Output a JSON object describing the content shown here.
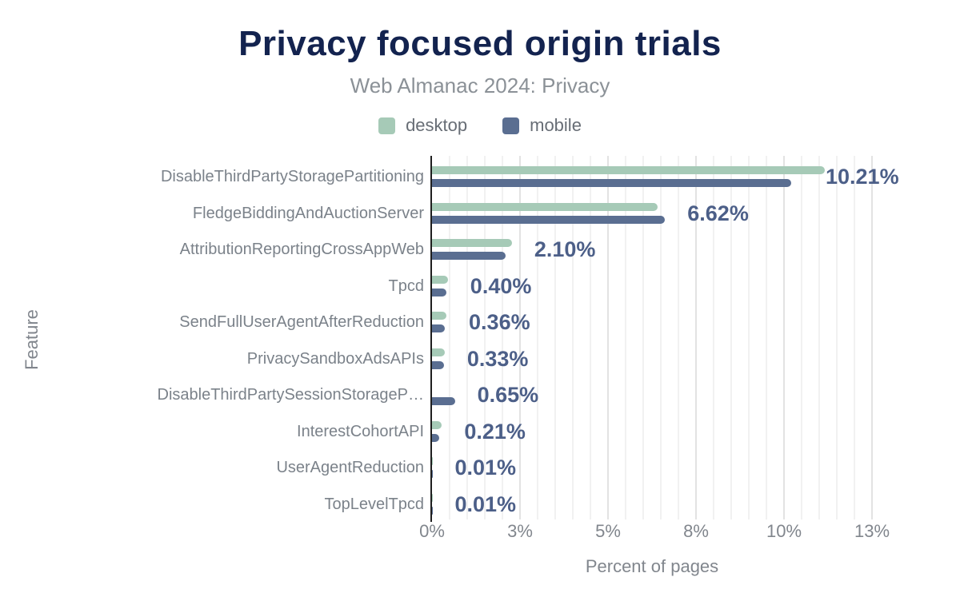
{
  "header": {
    "title": "Privacy focused origin trials",
    "subtitle": "Web Almanac 2024: Privacy"
  },
  "legend": {
    "items": [
      {
        "label": "desktop",
        "color": "#a6cab7"
      },
      {
        "label": "mobile",
        "color": "#5a6e91"
      }
    ]
  },
  "colors": {
    "title": "#13234f",
    "desktop_bar": "#a6cab7",
    "mobile_bar": "#5a6e91",
    "value_label": "#4c5f88",
    "axis_line": "#1f1f1f"
  },
  "chart_data": {
    "type": "bar",
    "orientation": "horizontal",
    "title": "Privacy focused origin trials",
    "subtitle": "Web Almanac 2024: Privacy",
    "xlabel": "Percent of pages",
    "ylabel": "Feature",
    "xlim": [
      0,
      12.5
    ],
    "grid": {
      "minor_step": 0.5,
      "major_step": 2.5,
      "vertical": true
    },
    "legend_position": "top",
    "x_ticks": [
      {
        "value": 0,
        "label": "0%"
      },
      {
        "value": 2.5,
        "label": "3%"
      },
      {
        "value": 5,
        "label": "5%"
      },
      {
        "value": 7.5,
        "label": "8%"
      },
      {
        "value": 10,
        "label": "10%"
      },
      {
        "value": 12.5,
        "label": "13%"
      }
    ],
    "categories": [
      "DisableThirdPartyStoragePartitioning",
      "FledgeBiddingAndAuctionServer",
      "AttributionReportingCrossAppWeb",
      "Tpcd",
      "SendFullUserAgentAfterReduction",
      "PrivacySandboxAdsAPIs",
      "DisableThirdPartySessionStorageP…",
      "InterestCohortAPI",
      "UserAgentReduction",
      "TopLevelTpcd"
    ],
    "series": [
      {
        "name": "desktop",
        "color": "#a6cab7",
        "values": [
          11.15,
          6.41,
          2.27,
          0.45,
          0.41,
          0.36,
          0,
          0.28,
          0.01,
          0.01
        ]
      },
      {
        "name": "mobile",
        "color": "#5a6e91",
        "values": [
          10.21,
          6.62,
          2.1,
          0.4,
          0.36,
          0.33,
          0.65,
          0.21,
          0.01,
          0.01
        ]
      }
    ],
    "value_labels": [
      "10.21%",
      "6.62%",
      "2.10%",
      "0.40%",
      "0.36%",
      "0.33%",
      "0.65%",
      "0.21%",
      "0.01%",
      "0.01%"
    ],
    "value_label_series": "mobile"
  }
}
